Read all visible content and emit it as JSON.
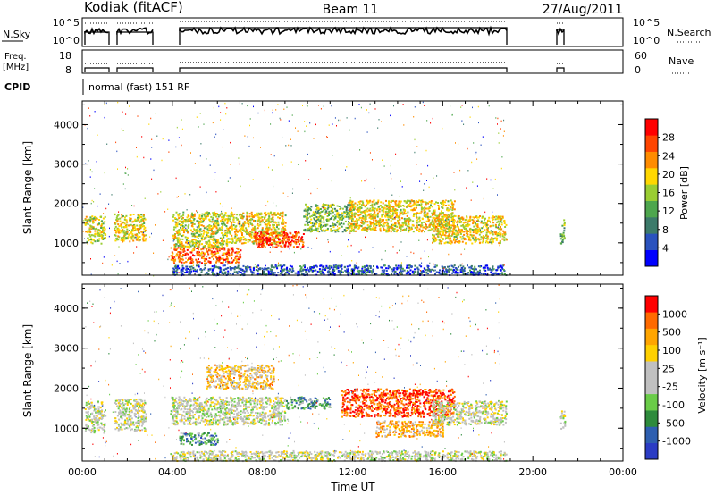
{
  "header": {
    "station": "Kodiak (fitACF)",
    "beam": "Beam 11",
    "date": "27/Aug/2011"
  },
  "strips": {
    "nsky": {
      "label": "N.Sky",
      "ticks": [
        "10^5",
        "10^0"
      ]
    },
    "nsearch": {
      "label": "N.Search",
      "ticks": [
        "10^5",
        "10^0"
      ]
    },
    "freq": {
      "label1": "Freq.",
      "label2": "[MHz]",
      "ticks": [
        "18",
        "8"
      ]
    },
    "nave": {
      "label": "Nave",
      "ticks": [
        "60",
        "0"
      ]
    },
    "cpid": {
      "label": "CPID",
      "text": "normal (fast) 151 RF"
    }
  },
  "chart_data": [
    {
      "type": "heatmap",
      "name": "Power",
      "ylabel": "Slant Range [km]",
      "xlabel": "",
      "colorbar_label": "Power [dB]",
      "colorbar_ticks": [
        "28",
        "24",
        "20",
        "16",
        "12",
        "8",
        "4"
      ],
      "colorbar_colors": [
        "#0000ff",
        "#2a52be",
        "#3c7a6a",
        "#4ea64e",
        "#9acd32",
        "#ffd700",
        "#ff8c00",
        "#ff4500",
        "#ff0000"
      ],
      "yticks": [
        "4000",
        "3000",
        "2000",
        "1000"
      ],
      "ylim": [
        180,
        4600
      ],
      "xlim": [
        0,
        24
      ],
      "scatter_regions": [
        {
          "x": [
            0.1,
            1.0
          ],
          "y": [
            1000,
            1700
          ],
          "level": 0.55
        },
        {
          "x": [
            1.4,
            2.8
          ],
          "y": [
            1050,
            1750
          ],
          "level": 0.6
        },
        {
          "x": [
            3.9,
            7.0
          ],
          "y": [
            500,
            900
          ],
          "level": 0.8
        },
        {
          "x": [
            4.0,
            6.5
          ],
          "y": [
            900,
            1800
          ],
          "level": 0.55
        },
        {
          "x": [
            6.5,
            9.0
          ],
          "y": [
            1000,
            1800
          ],
          "level": 0.6
        },
        {
          "x": [
            7.6,
            9.8
          ],
          "y": [
            900,
            1300
          ],
          "level": 0.85
        },
        {
          "x": [
            9.8,
            12.0
          ],
          "y": [
            1300,
            2000
          ],
          "level": 0.45
        },
        {
          "x": [
            11.8,
            16.5
          ],
          "y": [
            1300,
            2100
          ],
          "level": 0.6
        },
        {
          "x": [
            15.5,
            18.8
          ],
          "y": [
            1000,
            1700
          ],
          "level": 0.6
        },
        {
          "x": [
            4.0,
            18.8
          ],
          "y": [
            200,
            450
          ],
          "level": 0.2
        },
        {
          "x": [
            21.2,
            21.4
          ],
          "y": [
            1000,
            1600
          ],
          "level": 0.4
        }
      ]
    },
    {
      "type": "heatmap",
      "name": "Velocity",
      "ylabel": "Slant Range [km]",
      "xlabel": "Time UT",
      "colorbar_label": "Velocity [m s⁻¹]",
      "colorbar_ticks": [
        "1000",
        "500",
        "100",
        "25",
        "-25",
        "-100",
        "-500",
        "-1000"
      ],
      "colorbar_colors": [
        "#2b3cc4",
        "#2e5fb0",
        "#2e8b3c",
        "#6acc48",
        "#c0c0c0",
        "#c0c0c0",
        "#ffd000",
        "#ffa500",
        "#ff6a00",
        "#ff0000"
      ],
      "yticks": [
        "4000",
        "3000",
        "2000",
        "1000"
      ],
      "xticks": [
        "00:00",
        "04:00",
        "08:00",
        "12:00",
        "16:00",
        "20:00",
        "00:00"
      ],
      "ylim": [
        180,
        4600
      ],
      "xlim": [
        0,
        24
      ],
      "scatter_regions": [
        {
          "x": [
            0.1,
            1.0
          ],
          "y": [
            900,
            1700
          ],
          "level": 0.5
        },
        {
          "x": [
            1.4,
            2.8
          ],
          "y": [
            950,
            1750
          ],
          "level": 0.5
        },
        {
          "x": [
            3.9,
            9.0
          ],
          "y": [
            1100,
            1800
          ],
          "level": 0.5
        },
        {
          "x": [
            4.3,
            6.0
          ],
          "y": [
            600,
            900
          ],
          "level": 0.25
        },
        {
          "x": [
            5.5,
            8.5
          ],
          "y": [
            2000,
            2600
          ],
          "level": 0.65
        },
        {
          "x": [
            9.0,
            11.0
          ],
          "y": [
            1500,
            1800
          ],
          "level": 0.3
        },
        {
          "x": [
            11.5,
            16.5
          ],
          "y": [
            1300,
            2000
          ],
          "level": 0.9
        },
        {
          "x": [
            13.0,
            16.0
          ],
          "y": [
            800,
            1200
          ],
          "level": 0.7
        },
        {
          "x": [
            15.5,
            18.8
          ],
          "y": [
            1100,
            1700
          ],
          "level": 0.5
        },
        {
          "x": [
            3.9,
            18.8
          ],
          "y": [
            200,
            450
          ],
          "level": 0.5
        },
        {
          "x": [
            21.2,
            21.4
          ],
          "y": [
            1000,
            1500
          ],
          "level": 0.5
        }
      ]
    }
  ]
}
